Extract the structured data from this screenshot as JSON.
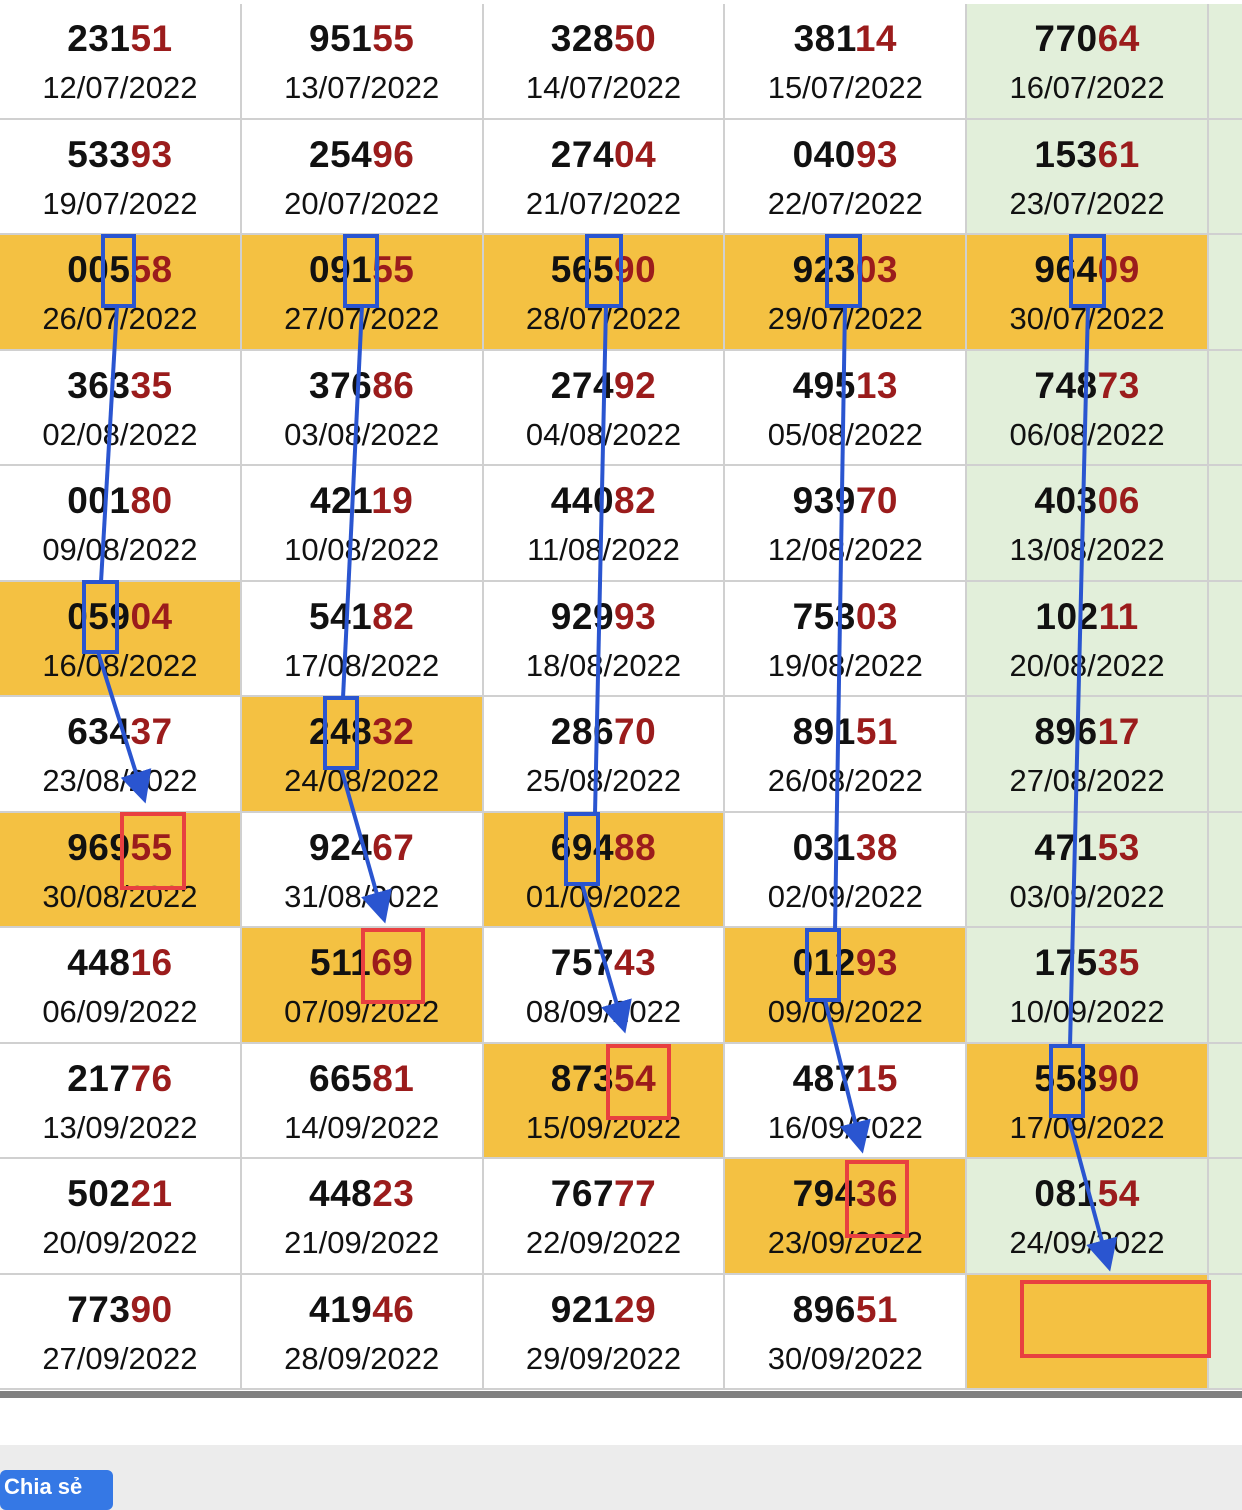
{
  "colors": {
    "highlight": "#f4c142",
    "last_column_bg": "#e2efda",
    "tail_digits": "#9b1c1c",
    "annotation_blue": "#2a55d0",
    "annotation_red": "#e84040",
    "share_button": "#3578e5"
  },
  "rows": [
    [
      {
        "num": "23151",
        "date": "12/07/2022"
      },
      {
        "num": "95155",
        "date": "13/07/2022"
      },
      {
        "num": "32850",
        "date": "14/07/2022"
      },
      {
        "num": "38114",
        "date": "15/07/2022"
      },
      {
        "num": "77064",
        "date": "16/07/2022"
      }
    ],
    [
      {
        "num": "53393",
        "date": "19/07/2022"
      },
      {
        "num": "25496",
        "date": "20/07/2022"
      },
      {
        "num": "27404",
        "date": "21/07/2022"
      },
      {
        "num": "04093",
        "date": "22/07/2022"
      },
      {
        "num": "15361",
        "date": "23/07/2022"
      }
    ],
    [
      {
        "num": "00558",
        "date": "26/07/2022",
        "hl": true
      },
      {
        "num": "09155",
        "date": "27/07/2022",
        "hl": true
      },
      {
        "num": "56590",
        "date": "28/07/2022",
        "hl": true
      },
      {
        "num": "92303",
        "date": "29/07/2022",
        "hl": true
      },
      {
        "num": "96409",
        "date": "30/07/2022",
        "hl": true
      }
    ],
    [
      {
        "num": "36335",
        "date": "02/08/2022"
      },
      {
        "num": "37686",
        "date": "03/08/2022"
      },
      {
        "num": "27492",
        "date": "04/08/2022"
      },
      {
        "num": "49513",
        "date": "05/08/2022"
      },
      {
        "num": "74873",
        "date": "06/08/2022"
      }
    ],
    [
      {
        "num": "00180",
        "date": "09/08/2022"
      },
      {
        "num": "42119",
        "date": "10/08/2022"
      },
      {
        "num": "44082",
        "date": "11/08/2022"
      },
      {
        "num": "93970",
        "date": "12/08/2022"
      },
      {
        "num": "40306",
        "date": "13/08/2022"
      }
    ],
    [
      {
        "num": "05904",
        "date": "16/08/2022",
        "hl": true
      },
      {
        "num": "54182",
        "date": "17/08/2022"
      },
      {
        "num": "92993",
        "date": "18/08/2022"
      },
      {
        "num": "75303",
        "date": "19/08/2022"
      },
      {
        "num": "10211",
        "date": "20/08/2022"
      }
    ],
    [
      {
        "num": "63437",
        "date": "23/08/2022"
      },
      {
        "num": "24832",
        "date": "24/08/2022",
        "hl": true
      },
      {
        "num": "28670",
        "date": "25/08/2022"
      },
      {
        "num": "89151",
        "date": "26/08/2022"
      },
      {
        "num": "89617",
        "date": "27/08/2022"
      }
    ],
    [
      {
        "num": "96955",
        "date": "30/08/2022",
        "hl": true
      },
      {
        "num": "92467",
        "date": "31/08/2022"
      },
      {
        "num": "69488",
        "date": "01/09/2022",
        "hl": true
      },
      {
        "num": "03138",
        "date": "02/09/2022"
      },
      {
        "num": "47153",
        "date": "03/09/2022"
      }
    ],
    [
      {
        "num": "44816",
        "date": "06/09/2022"
      },
      {
        "num": "51169",
        "date": "07/09/2022",
        "hl": true
      },
      {
        "num": "75743",
        "date": "08/09/2022"
      },
      {
        "num": "01293",
        "date": "09/09/2022",
        "hl": true
      },
      {
        "num": "17535",
        "date": "10/09/2022"
      }
    ],
    [
      {
        "num": "21776",
        "date": "13/09/2022"
      },
      {
        "num": "66581",
        "date": "14/09/2022"
      },
      {
        "num": "87354",
        "date": "15/09/2022",
        "hl": true
      },
      {
        "num": "48715",
        "date": "16/09/2022"
      },
      {
        "num": "55890",
        "date": "17/09/2022",
        "hl": true
      }
    ],
    [
      {
        "num": "50221",
        "date": "20/09/2022"
      },
      {
        "num": "44823",
        "date": "21/09/2022"
      },
      {
        "num": "76777",
        "date": "22/09/2022"
      },
      {
        "num": "79436",
        "date": "23/09/2022",
        "hl": true
      },
      {
        "num": "08154",
        "date": "24/09/2022"
      }
    ],
    [
      {
        "num": "77390",
        "date": "27/09/2022"
      },
      {
        "num": "41946",
        "date": "28/09/2022"
      },
      {
        "num": "92129",
        "date": "29/09/2022"
      },
      {
        "num": "89651",
        "date": "30/09/2022"
      },
      {
        "num": "",
        "date": "",
        "hl": true
      }
    ]
  ],
  "share_button": {
    "label": "Chia sẻ"
  }
}
